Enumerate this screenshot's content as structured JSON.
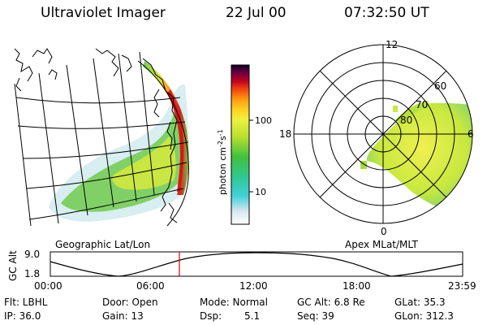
{
  "header": {
    "instrument": "Ultraviolet Imager",
    "date": "22 Jul 00",
    "time": "07:32:50 UT"
  },
  "colorbar": {
    "label": "photon cm-2s-1",
    "ticks": [
      "100",
      "10"
    ]
  },
  "geo_panel": {
    "caption": "Geographic Lat/Lon"
  },
  "polar_panel": {
    "caption": "Apex MLat/MLT",
    "mlt_labels": [
      "12",
      "18",
      "6",
      "0"
    ],
    "lat_labels": [
      "80",
      "70",
      "60"
    ]
  },
  "timeline": {
    "ylabel": "GC Alt",
    "ymax": "9.0",
    "ymin": "1.8",
    "x_ticks": [
      "00:00",
      "06:00",
      "12:00",
      "18:00",
      "23:59"
    ],
    "marker_time": "07:32:50",
    "marker_color": "#e00000"
  },
  "info": {
    "row1": {
      "flt": "Flt: LBHL",
      "door": "Door: Open",
      "mode": "Mode: Normal",
      "gcalt": "GC Alt: 6.8 Re",
      "glat": "GLat: 35.3"
    },
    "row2": {
      "ip": "IP: 36.0",
      "gain": "Gain: 13",
      "dsp_label": "Dsp:",
      "dsp_value": "5.1",
      "seq": "Seq: 39",
      "glon": "GLon: 312.3"
    }
  }
}
